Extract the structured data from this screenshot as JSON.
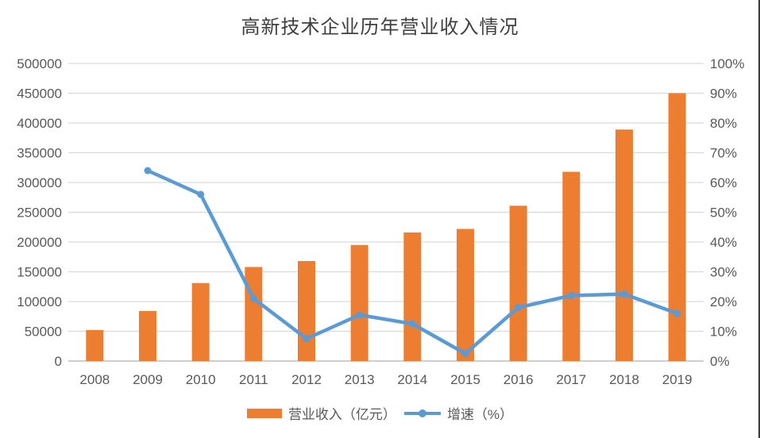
{
  "title": "高新技术企业历年营业收入情况",
  "colors": {
    "bar": "#ED7D31",
    "line": "#5B9BD5",
    "grid": "#D9D9D9",
    "baseline": "#BFBFBF",
    "axis_text": "#595959",
    "title_text": "#404040"
  },
  "chart_data": {
    "type": "bar+line combo",
    "title": "高新技术企业历年营业收入情况",
    "categories": [
      "2008",
      "2009",
      "2010",
      "2011",
      "2012",
      "2013",
      "2014",
      "2015",
      "2016",
      "2017",
      "2018",
      "2019"
    ],
    "series": [
      {
        "name": "营业收入（亿元）",
        "type": "bar",
        "axis": "left",
        "color": "#ED7D31",
        "values": [
          52000,
          84000,
          131000,
          158000,
          168000,
          195000,
          216000,
          222000,
          261000,
          318000,
          389000,
          450000
        ]
      },
      {
        "name": "增速（%）",
        "type": "line",
        "axis": "right",
        "color": "#5B9BD5",
        "values": [
          null,
          64,
          56,
          21,
          7.5,
          15.5,
          12.5,
          2.5,
          18,
          22,
          22.5,
          16
        ]
      }
    ],
    "left_axis": {
      "min": 0,
      "max": 500000,
      "step": 50000,
      "tick_labels": [
        "0",
        "50000",
        "100000",
        "150000",
        "200000",
        "250000",
        "300000",
        "350000",
        "400000",
        "450000",
        "500000"
      ]
    },
    "right_axis": {
      "min": 0,
      "max": 100,
      "step": 10,
      "tick_labels": [
        "0%",
        "10%",
        "20%",
        "30%",
        "40%",
        "50%",
        "60%",
        "70%",
        "80%",
        "90%",
        "100%"
      ]
    },
    "grid": "horizontal only",
    "legend_position": "bottom"
  }
}
